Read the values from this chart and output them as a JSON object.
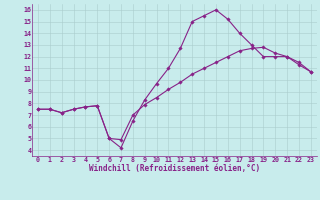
{
  "xlabel": "Windchill (Refroidissement éolien,°C)",
  "bg_color": "#c8ecec",
  "line_color": "#882288",
  "grid_color": "#aacccc",
  "xlim": [
    -0.5,
    23.5
  ],
  "ylim": [
    3.5,
    16.5
  ],
  "xticks": [
    0,
    1,
    2,
    3,
    4,
    5,
    6,
    7,
    8,
    9,
    10,
    11,
    12,
    13,
    14,
    15,
    16,
    17,
    18,
    19,
    20,
    21,
    22,
    23
  ],
  "yticks": [
    4,
    5,
    6,
    7,
    8,
    9,
    10,
    11,
    12,
    13,
    14,
    15,
    16
  ],
  "line1_x": [
    0,
    1,
    2,
    3,
    4,
    5,
    6,
    7,
    8,
    9,
    10,
    11,
    12,
    13,
    14,
    15,
    16,
    17,
    18,
    19,
    20,
    21,
    22,
    23
  ],
  "line1_y": [
    7.5,
    7.5,
    7.2,
    7.5,
    7.7,
    7.8,
    5.0,
    4.2,
    6.5,
    8.3,
    9.7,
    11.0,
    12.7,
    15.0,
    15.5,
    16.0,
    15.2,
    14.0,
    13.0,
    12.0,
    12.0,
    12.0,
    11.3,
    10.7
  ],
  "line2_x": [
    0,
    1,
    2,
    3,
    4,
    5,
    6,
    7,
    8,
    9,
    10,
    11,
    12,
    13,
    14,
    15,
    16,
    17,
    18,
    19,
    20,
    21,
    22,
    23
  ],
  "line2_y": [
    7.5,
    7.5,
    7.2,
    7.5,
    7.7,
    7.8,
    5.0,
    4.9,
    7.0,
    7.9,
    8.5,
    9.2,
    9.8,
    10.5,
    11.0,
    11.5,
    12.0,
    12.5,
    12.7,
    12.8,
    12.3,
    12.0,
    11.5,
    10.7
  ],
  "tick_fontsize": 4.8,
  "label_fontsize": 5.5,
  "marker": "D",
  "marker_size": 1.8,
  "line_width": 0.8
}
